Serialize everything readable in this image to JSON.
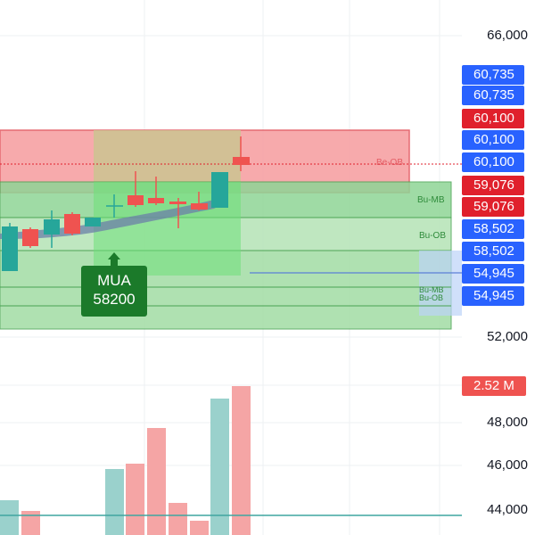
{
  "price_axis": {
    "labels": [
      "66,000",
      "52,000",
      "48,000",
      "46,000",
      "44,000"
    ]
  },
  "price_tags": [
    {
      "text": "60,735",
      "color": "#2962ff"
    },
    {
      "text": "60,735",
      "color": "#2962ff"
    },
    {
      "text": "60,100",
      "color": "#e0202c"
    },
    {
      "text": "60,100",
      "color": "#2962ff"
    },
    {
      "text": "60,100",
      "color": "#2962ff"
    },
    {
      "text": "59,076",
      "color": "#e0202c"
    },
    {
      "text": "59,076",
      "color": "#e0202c"
    },
    {
      "text": "58,502",
      "color": "#2962ff"
    },
    {
      "text": "58,502",
      "color": "#2962ff"
    },
    {
      "text": "54,945",
      "color": "#2962ff"
    },
    {
      "text": "54,945",
      "color": "#2962ff"
    }
  ],
  "volume_tag": {
    "text": "2.52 M",
    "color": "#ef5350"
  },
  "zones": {
    "bear_ob": "Be-OB",
    "bull_mb": "Bu-MB",
    "bull_ob": "Bu-OB",
    "bull_mb_ob": "Bu-MB\nBu-OB"
  },
  "buy_signal": {
    "label": "MUA",
    "price": "58200"
  },
  "colors": {
    "up": "#26a69a",
    "down": "#ef5350",
    "bear_zone": "#f7a1a4",
    "bull_zone": "#7fd08a"
  }
}
